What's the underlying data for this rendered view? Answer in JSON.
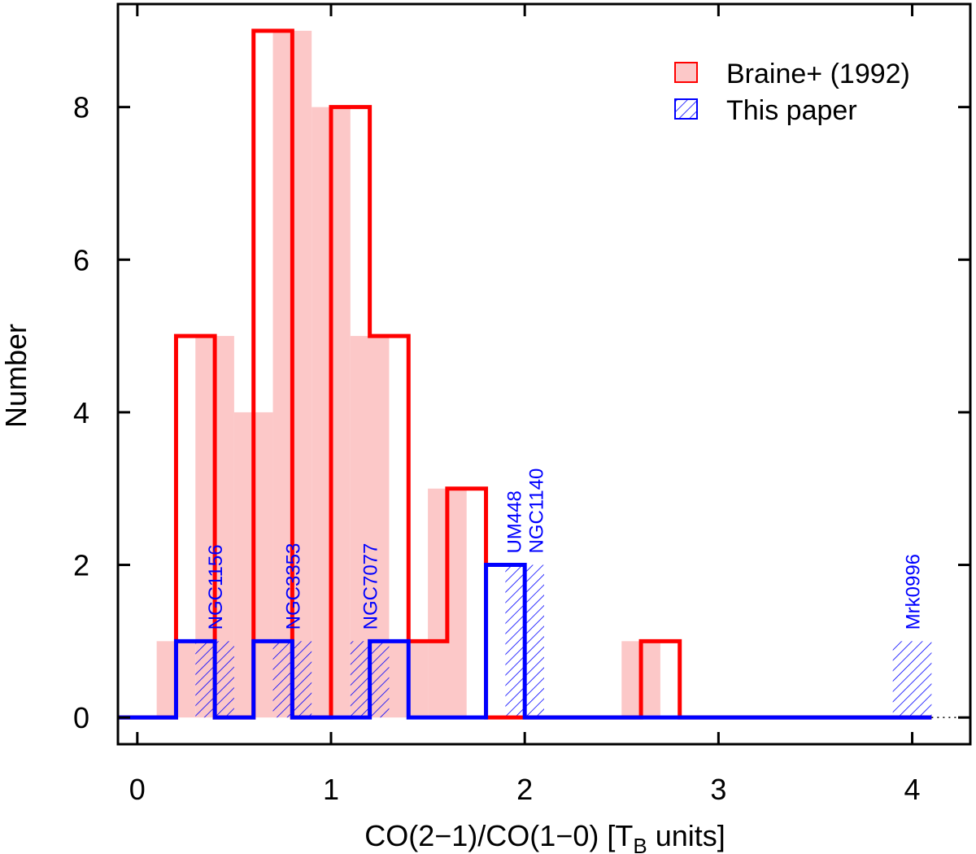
{
  "chart_data": {
    "type": "histogram",
    "xlabel": "CO(2−1)/CO(1−0) [T",
    "xlabel_sub": "B",
    "xlabel_suffix": " units]",
    "ylabel": "Number",
    "xlim": [
      -0.1,
      4.3
    ],
    "ylim": [
      -0.35,
      9.35
    ],
    "xticks": [
      0,
      1,
      2,
      3,
      4
    ],
    "yticks": [
      0,
      2,
      4,
      6,
      8
    ],
    "bin_width": 0.2,
    "series": [
      {
        "name": "Braine+ (1992)",
        "color": "#ff0000",
        "fill": "#fcc8c8",
        "style": "filled",
        "bins": [
          {
            "x0": 0.1,
            "x1": 0.3,
            "count": 1
          },
          {
            "x0": 0.3,
            "x1": 0.5,
            "count": 5
          },
          {
            "x0": 0.5,
            "x1": 0.7,
            "count": 4
          },
          {
            "x0": 0.7,
            "x1": 0.9,
            "count": 9
          },
          {
            "x0": 0.9,
            "x1": 1.1,
            "count": 8
          },
          {
            "x0": 1.1,
            "x1": 1.3,
            "count": 5
          },
          {
            "x0": 1.3,
            "x1": 1.5,
            "count": 1
          },
          {
            "x0": 1.5,
            "x1": 1.7,
            "count": 3
          },
          {
            "x0": 2.5,
            "x1": 2.7,
            "count": 1
          }
        ]
      },
      {
        "name": "This paper",
        "color": "#0000ff",
        "style": "hatched",
        "bins": [
          {
            "x0": 0.3,
            "x1": 0.5,
            "count": 1
          },
          {
            "x0": 0.7,
            "x1": 0.9,
            "count": 1
          },
          {
            "x0": 1.1,
            "x1": 1.3,
            "count": 1
          },
          {
            "x0": 1.9,
            "x1": 2.1,
            "count": 2
          },
          {
            "x0": 3.9,
            "x1": 4.1,
            "count": 1
          }
        ]
      }
    ],
    "annotations": [
      {
        "lines": [
          "NGC1156"
        ],
        "x": 0.4,
        "y": 1
      },
      {
        "lines": [
          "NGC3353"
        ],
        "x": 0.8,
        "y": 1
      },
      {
        "lines": [
          "NGC7077"
        ],
        "x": 1.2,
        "y": 1
      },
      {
        "lines": [
          "UM448",
          "NGC1140"
        ],
        "x": 2.0,
        "y": 2
      },
      {
        "lines": [
          "Mrk0996"
        ],
        "x": 4.0,
        "y": 1
      }
    ],
    "legend_position": "top-right"
  }
}
